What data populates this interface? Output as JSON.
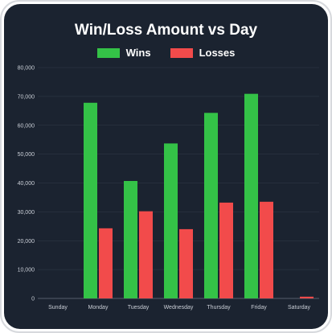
{
  "chart_data": {
    "type": "bar",
    "title": "Win/Loss Amount vs Day",
    "categories": [
      "Sunday",
      "Monday",
      "Tuesday",
      "Wednesday",
      "Thursday",
      "Friday",
      "Saturday"
    ],
    "series": [
      {
        "name": "Wins",
        "color": "#34c247",
        "values": [
          0,
          67800,
          40700,
          53700,
          64300,
          70900,
          0
        ]
      },
      {
        "name": "Losses",
        "color": "#f24b4b",
        "values": [
          0,
          24300,
          30200,
          24000,
          33200,
          33500,
          600
        ]
      }
    ],
    "yticks": [
      "0",
      "10,000",
      "20,000",
      "30,000",
      "40,000",
      "50,000",
      "60,000",
      "70,000",
      "80,000"
    ],
    "ylim": [
      0,
      80000
    ],
    "grid": true,
    "legend_position": "top-center"
  }
}
